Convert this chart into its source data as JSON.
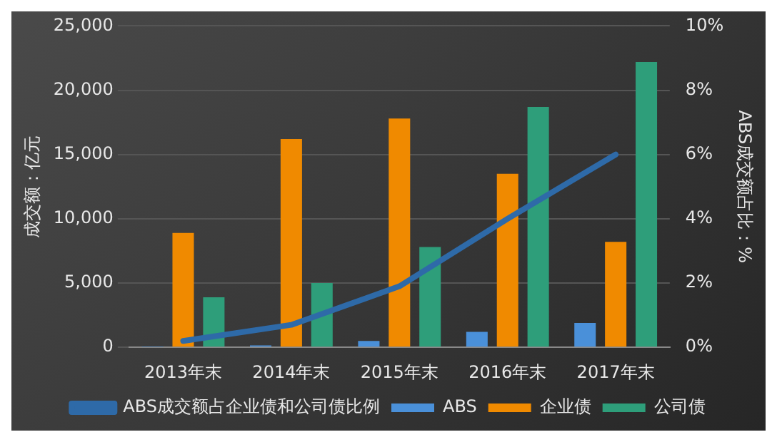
{
  "chart_data": {
    "type": "bar",
    "categories": [
      "2013年末",
      "2014年末",
      "2015年末",
      "2016年末",
      "2017年末"
    ],
    "ylabel": "成交额：亿元",
    "y2label": "ABS成交额占比：%",
    "series": [
      {
        "name": "ABS",
        "color": "#4a90d9",
        "values": [
          30,
          150,
          500,
          1200,
          1900
        ]
      },
      {
        "name": "企业债",
        "color": "#f08a00",
        "values": [
          8900,
          16200,
          17800,
          13500,
          8200
        ]
      },
      {
        "name": "公司债",
        "color": "#2e9e7a",
        "values": [
          3900,
          5000,
          7800,
          18700,
          22200
        ]
      },
      {
        "name": "ABS成交额占企业债和公司债比例",
        "type": "line",
        "axis": "y2",
        "color": "#2e6aa8",
        "values": [
          0.2,
          0.7,
          1.9,
          4.0,
          6.0
        ]
      }
    ],
    "ylim": [
      0,
      25000
    ],
    "yticks": [
      {
        "value": 0,
        "label": "0"
      },
      {
        "value": 5000,
        "label": "5,000"
      },
      {
        "value": 10000,
        "label": "10,000"
      },
      {
        "value": 15000,
        "label": "15,000"
      },
      {
        "value": 20000,
        "label": "20,000"
      },
      {
        "value": 25000,
        "label": "25,000"
      }
    ],
    "y2lim": [
      0,
      10
    ],
    "y2ticks": [
      {
        "value": 0,
        "label": "0%"
      },
      {
        "value": 2,
        "label": "2%"
      },
      {
        "value": 4,
        "label": "4%"
      },
      {
        "value": 6,
        "label": "6%"
      },
      {
        "value": 8,
        "label": "8%"
      },
      {
        "value": 10,
        "label": "10%"
      }
    ],
    "grid": "y",
    "legend": "bottom",
    "marker": "none"
  }
}
